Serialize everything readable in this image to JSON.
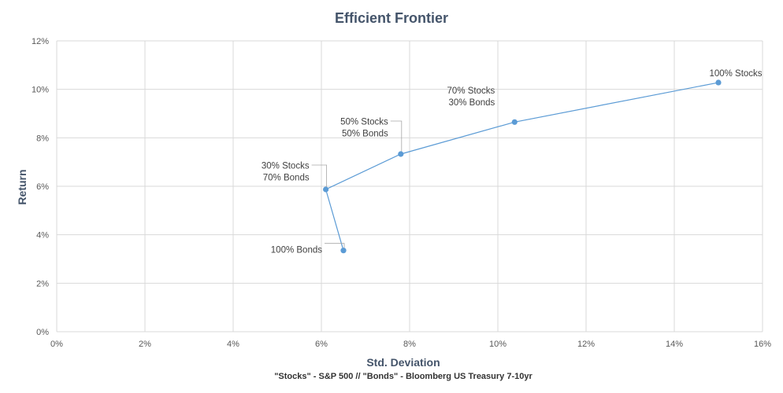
{
  "chart_data": {
    "type": "scatter",
    "title": "Efficient Frontier",
    "xlabel": "Std. Deviation",
    "ylabel": "Return",
    "note": "\"Stocks\" - S&P 500 // \"Bonds\" - Bloomberg  US Treasury 7-10yr",
    "xlim": [
      0,
      0.16
    ],
    "ylim": [
      0,
      0.12
    ],
    "xticks": [
      0,
      0.02,
      0.04,
      0.06,
      0.08,
      0.1,
      0.12,
      0.14,
      0.16
    ],
    "xtick_labels": [
      "0%",
      "2%",
      "4%",
      "6%",
      "8%",
      "10%",
      "12%",
      "14%",
      "16%"
    ],
    "yticks": [
      0,
      0.02,
      0.04,
      0.06,
      0.08,
      0.1,
      0.12
    ],
    "ytick_labels": [
      "0%",
      "2%",
      "4%",
      "6%",
      "8%",
      "10%",
      "12%"
    ],
    "grid": true,
    "legend": "none",
    "color": "#5B9BD5",
    "points": [
      {
        "x": 0.065,
        "y": 0.0335,
        "label": [
          "100% Bonds"
        ]
      },
      {
        "x": 0.061,
        "y": 0.0587,
        "label": [
          "30% Stocks",
          "70% Bonds"
        ]
      },
      {
        "x": 0.078,
        "y": 0.0733,
        "label": [
          "50% Stocks",
          "50% Bonds"
        ]
      },
      {
        "x": 0.1038,
        "y": 0.0865,
        "label": [
          "70% Stocks",
          "30% Bonds"
        ]
      },
      {
        "x": 0.15,
        "y": 0.1028,
        "label": [
          "100% Stocks"
        ]
      }
    ]
  }
}
